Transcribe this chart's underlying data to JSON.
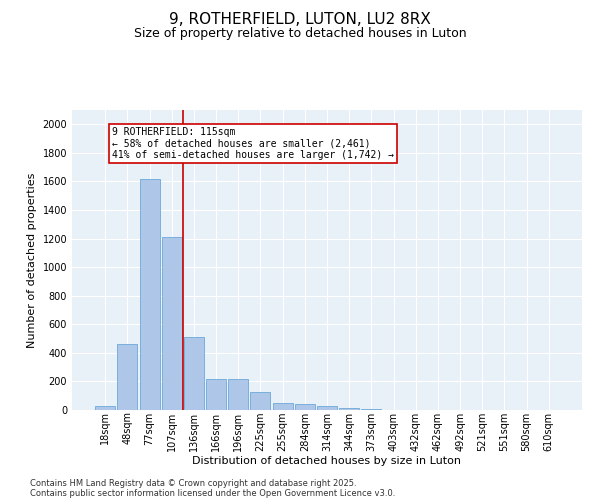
{
  "title1": "9, ROTHERFIELD, LUTON, LU2 8RX",
  "title2": "Size of property relative to detached houses in Luton",
  "xlabel": "Distribution of detached houses by size in Luton",
  "ylabel": "Number of detached properties",
  "categories": [
    "18sqm",
    "48sqm",
    "77sqm",
    "107sqm",
    "136sqm",
    "166sqm",
    "196sqm",
    "225sqm",
    "255sqm",
    "284sqm",
    "314sqm",
    "344sqm",
    "373sqm",
    "403sqm",
    "432sqm",
    "462sqm",
    "492sqm",
    "521sqm",
    "551sqm",
    "580sqm",
    "610sqm"
  ],
  "values": [
    30,
    460,
    1620,
    1210,
    510,
    215,
    215,
    125,
    48,
    42,
    25,
    15,
    5,
    0,
    0,
    0,
    0,
    0,
    0,
    0,
    0
  ],
  "bar_color": "#aec6e8",
  "bar_edge_color": "#5a9fd4",
  "vline_color": "#cc0000",
  "annotation_text": "9 ROTHERFIELD: 115sqm\n← 58% of detached houses are smaller (2,461)\n41% of semi-detached houses are larger (1,742) →",
  "annotation_box_color": "#ffffff",
  "annotation_box_edge_color": "#cc0000",
  "ylim": [
    0,
    2100
  ],
  "yticks": [
    0,
    200,
    400,
    600,
    800,
    1000,
    1200,
    1400,
    1600,
    1800,
    2000
  ],
  "bg_color": "#e8f0f8",
  "footer1": "Contains HM Land Registry data © Crown copyright and database right 2025.",
  "footer2": "Contains public sector information licensed under the Open Government Licence v3.0.",
  "title_fontsize": 11,
  "subtitle_fontsize": 9,
  "label_fontsize": 8,
  "tick_fontsize": 7,
  "annotation_fontsize": 7,
  "footer_fontsize": 6
}
